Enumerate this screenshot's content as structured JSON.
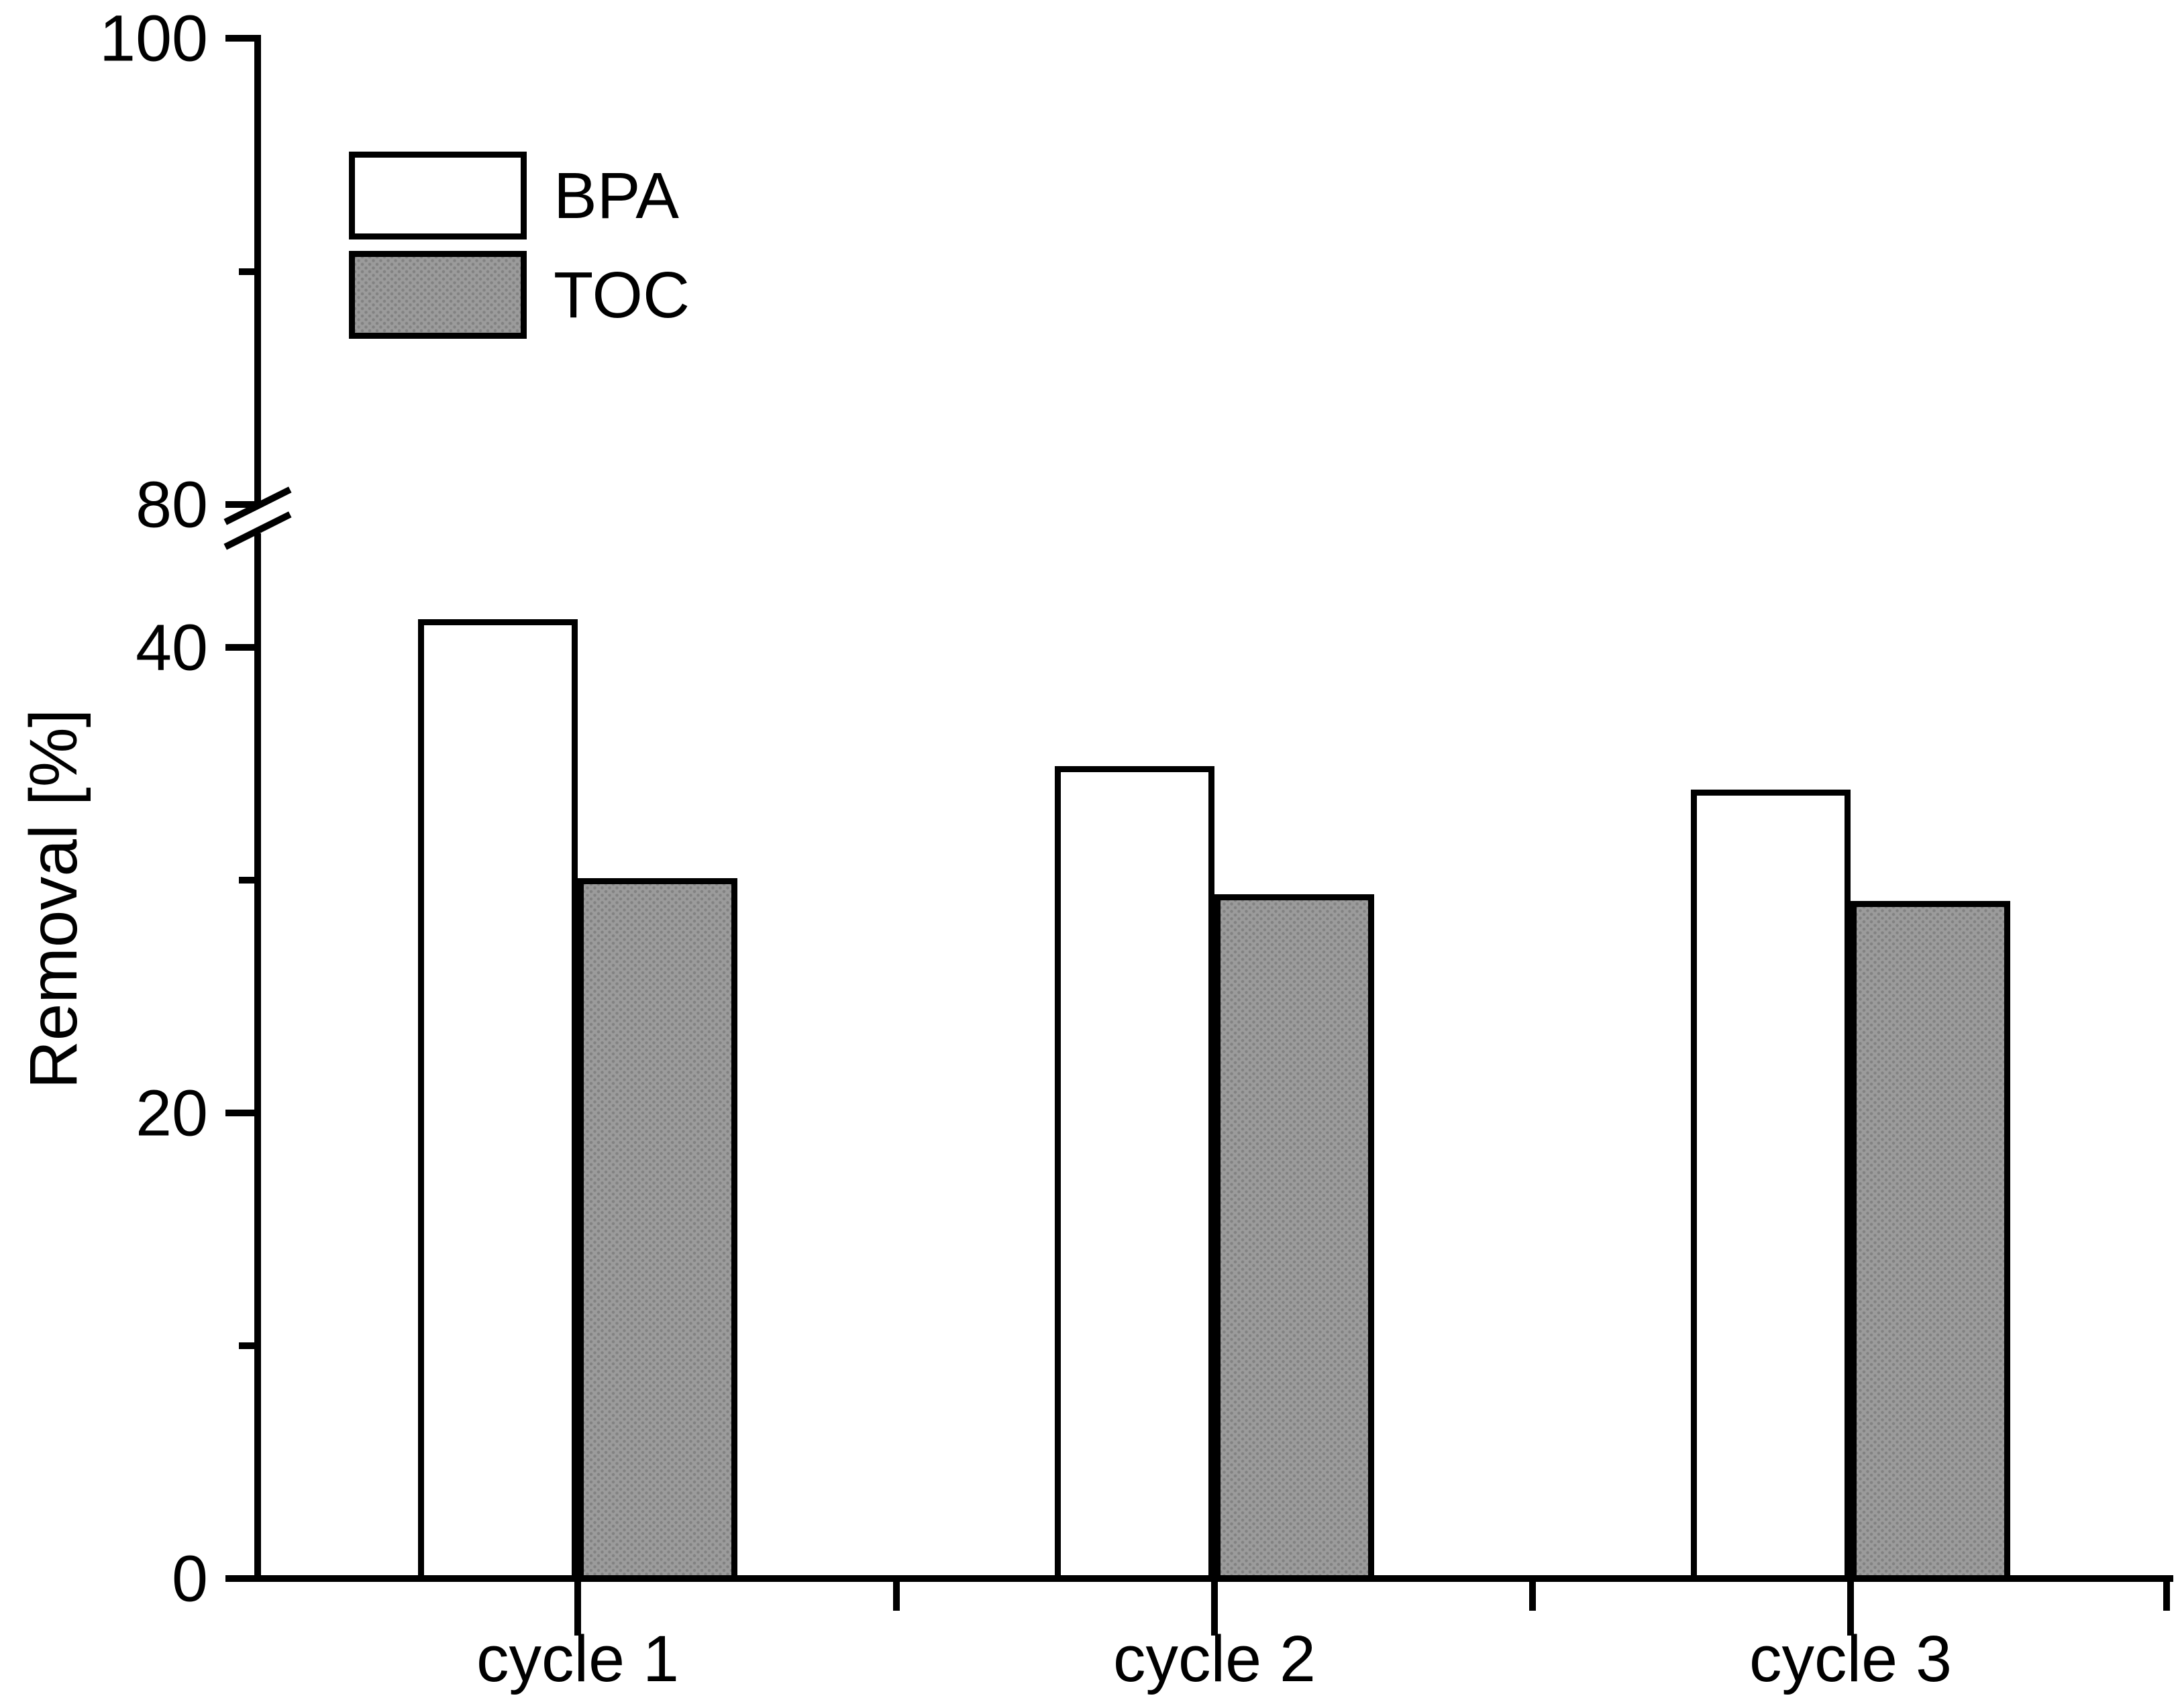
{
  "chart_data": {
    "type": "bar",
    "title": "",
    "categories": [
      "cycle 1",
      "cycle 2",
      "cycle 3"
    ],
    "series": [
      {
        "name": "BPA",
        "values": [
          41.2,
          34.9,
          33.9
        ],
        "fill": "#ffffff"
      },
      {
        "name": "TOC",
        "values": [
          30.1,
          29.4,
          29.1
        ],
        "fill": "#9b9b9b"
      }
    ],
    "xlabel": "",
    "ylabel": "Removal [%]",
    "ylim": [
      0,
      100
    ],
    "yticks_major": [
      0,
      20,
      40,
      80,
      100
    ],
    "yticks_minor": [
      10,
      30,
      90
    ],
    "axis_break": {
      "from": 45,
      "to": 80
    },
    "grid": "off",
    "legend_position": "top-left",
    "bar_border_color": "#000000",
    "axis_color": "#000000"
  }
}
